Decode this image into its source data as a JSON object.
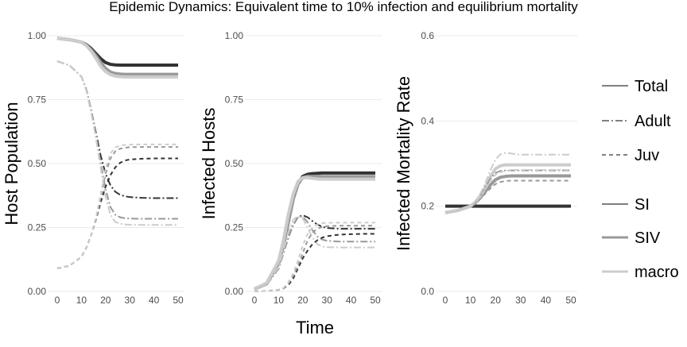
{
  "chart_data": {
    "title": "Epidemic Dynamics: Equivalent time to 10% infection and equilibrium mortality",
    "xlabel": "Time",
    "x_ticks": [
      0,
      10,
      20,
      30,
      40,
      50
    ],
    "grid": "horizontal major",
    "legend_position": "right",
    "legend": {
      "stage": [
        {
          "label": "Total",
          "dash": "solid"
        },
        {
          "label": "Adult",
          "dash": "dashdot"
        },
        {
          "label": "Juv",
          "dash": "dashed"
        }
      ],
      "model": [
        {
          "label": "SI",
          "color": "#333333"
        },
        {
          "label": "SIV",
          "color": "#999999"
        },
        {
          "label": "macro",
          "color": "#cccccc"
        }
      ]
    },
    "panels": [
      {
        "type": "line",
        "ylabel": "Host Population",
        "ylim": [
          0,
          1.0
        ],
        "y_ticks": [
          0.0,
          0.25,
          0.5,
          0.75,
          1.0
        ],
        "y_tick_labels": [
          "0.00",
          "0.25",
          "0.50",
          "0.75",
          "1.00"
        ],
        "x": [
          0,
          5,
          10,
          12,
          14,
          16,
          18,
          20,
          22,
          24,
          26,
          28,
          30,
          35,
          40,
          45,
          50
        ],
        "series": [
          {
            "model": "SI",
            "stage": "Total",
            "values": [
              0.99,
              0.985,
              0.975,
              0.965,
              0.95,
              0.93,
              0.91,
              0.895,
              0.888,
              0.886,
              0.885,
              0.885,
              0.885,
              0.885,
              0.885,
              0.885,
              0.885
            ]
          },
          {
            "model": "SIV",
            "stage": "Total",
            "values": [
              0.99,
              0.985,
              0.975,
              0.962,
              0.945,
              0.922,
              0.895,
              0.872,
              0.858,
              0.852,
              0.85,
              0.849,
              0.849,
              0.849,
              0.849,
              0.849,
              0.849
            ]
          },
          {
            "model": "macro",
            "stage": "Total",
            "values": [
              0.99,
              0.985,
              0.975,
              0.962,
              0.94,
              0.912,
              0.88,
              0.86,
              0.848,
              0.842,
              0.84,
              0.839,
              0.839,
              0.839,
              0.839,
              0.839,
              0.839
            ]
          },
          {
            "model": "SI",
            "stage": "Adult",
            "values": [
              0.9,
              0.885,
              0.84,
              0.79,
              0.71,
              0.62,
              0.53,
              0.46,
              0.415,
              0.39,
              0.378,
              0.372,
              0.369,
              0.366,
              0.365,
              0.365,
              0.365
            ]
          },
          {
            "model": "SIV",
            "stage": "Adult",
            "values": [
              0.9,
              0.885,
              0.84,
              0.79,
              0.71,
              0.61,
              0.5,
              0.4,
              0.33,
              0.3,
              0.29,
              0.286,
              0.285,
              0.284,
              0.284,
              0.284,
              0.284
            ]
          },
          {
            "model": "macro",
            "stage": "Adult",
            "values": [
              0.9,
              0.885,
              0.84,
              0.785,
              0.7,
              0.6,
              0.48,
              0.37,
              0.3,
              0.272,
              0.265,
              0.262,
              0.261,
              0.26,
              0.26,
              0.26,
              0.26
            ]
          },
          {
            "model": "SI",
            "stage": "Juv",
            "values": [
              0.09,
              0.1,
              0.135,
              0.17,
              0.22,
              0.28,
              0.35,
              0.41,
              0.455,
              0.485,
              0.503,
              0.512,
              0.516,
              0.519,
              0.52,
              0.52,
              0.52
            ]
          },
          {
            "model": "SIV",
            "stage": "Juv",
            "values": [
              0.09,
              0.1,
              0.135,
              0.17,
              0.22,
              0.28,
              0.37,
              0.46,
              0.52,
              0.548,
              0.558,
              0.562,
              0.564,
              0.565,
              0.565,
              0.565,
              0.565
            ]
          },
          {
            "model": "macro",
            "stage": "Juv",
            "values": [
              0.09,
              0.1,
              0.135,
              0.17,
              0.22,
              0.29,
              0.38,
              0.48,
              0.54,
              0.563,
              0.57,
              0.573,
              0.574,
              0.575,
              0.575,
              0.575,
              0.575
            ]
          }
        ]
      },
      {
        "type": "line",
        "ylabel": "Infected Hosts",
        "ylim": [
          0,
          1.0
        ],
        "y_ticks": [
          0.0,
          0.25,
          0.5,
          0.75,
          1.0
        ],
        "y_tick_labels": [
          "0.00",
          "0.25",
          "0.50",
          "0.75",
          "1.00"
        ],
        "x": [
          0,
          5,
          10,
          12,
          14,
          16,
          18,
          20,
          22,
          24,
          26,
          28,
          30,
          35,
          40,
          45,
          50
        ],
        "series": [
          {
            "model": "SI",
            "stage": "Total",
            "values": [
              0.01,
              0.03,
              0.11,
              0.18,
              0.27,
              0.36,
              0.42,
              0.45,
              0.458,
              0.461,
              0.462,
              0.463,
              0.463,
              0.463,
              0.463,
              0.463,
              0.463
            ]
          },
          {
            "model": "SIV",
            "stage": "Total",
            "values": [
              0.01,
              0.03,
              0.11,
              0.18,
              0.27,
              0.36,
              0.42,
              0.445,
              0.45,
              0.45,
              0.45,
              0.449,
              0.449,
              0.449,
              0.449,
              0.449,
              0.449
            ]
          },
          {
            "model": "macro",
            "stage": "Total",
            "values": [
              0.01,
              0.032,
              0.12,
              0.2,
              0.3,
              0.38,
              0.43,
              0.445,
              0.445,
              0.442,
              0.44,
              0.439,
              0.439,
              0.439,
              0.439,
              0.439,
              0.439
            ]
          },
          {
            "model": "SI",
            "stage": "Adult",
            "values": [
              0.008,
              0.025,
              0.09,
              0.15,
              0.21,
              0.26,
              0.29,
              0.298,
              0.29,
              0.275,
              0.262,
              0.253,
              0.248,
              0.245,
              0.245,
              0.245,
              0.245
            ]
          },
          {
            "model": "SIV",
            "stage": "Adult",
            "values": [
              0.008,
              0.025,
              0.09,
              0.15,
              0.21,
              0.26,
              0.29,
              0.293,
              0.27,
              0.24,
              0.215,
              0.203,
              0.198,
              0.195,
              0.195,
              0.195,
              0.195
            ]
          },
          {
            "model": "macro",
            "stage": "Adult",
            "values": [
              0.008,
              0.026,
              0.095,
              0.16,
              0.23,
              0.28,
              0.295,
              0.285,
              0.25,
              0.21,
              0.185,
              0.176,
              0.173,
              0.172,
              0.172,
              0.172,
              0.172
            ]
          },
          {
            "model": "SI",
            "stage": "Juv",
            "values": [
              0.0,
              0.002,
              0.006,
              0.012,
              0.025,
              0.05,
              0.09,
              0.13,
              0.16,
              0.185,
              0.2,
              0.21,
              0.216,
              0.222,
              0.224,
              0.225,
              0.225
            ]
          },
          {
            "model": "SIV",
            "stage": "Juv",
            "values": [
              0.0,
              0.002,
              0.006,
              0.012,
              0.03,
              0.06,
              0.1,
              0.15,
              0.2,
              0.23,
              0.245,
              0.252,
              0.255,
              0.257,
              0.257,
              0.257,
              0.257
            ]
          },
          {
            "model": "macro",
            "stage": "Juv",
            "values": [
              0.0,
              0.002,
              0.007,
              0.014,
              0.035,
              0.07,
              0.12,
              0.18,
              0.225,
              0.25,
              0.262,
              0.267,
              0.268,
              0.269,
              0.269,
              0.269,
              0.269
            ]
          }
        ]
      },
      {
        "type": "line",
        "ylabel": "Infected Mortality Rate",
        "ylim": [
          0,
          0.6
        ],
        "y_ticks": [
          0.0,
          0.2,
          0.4,
          0.6
        ],
        "y_tick_labels": [
          "0.0",
          "0.2",
          "0.4",
          "0.6"
        ],
        "x": [
          0,
          5,
          10,
          12,
          14,
          16,
          18,
          20,
          22,
          24,
          26,
          28,
          30,
          35,
          40,
          45,
          50
        ],
        "series": [
          {
            "model": "SI",
            "stage": "Total",
            "values": [
              0.2,
              0.2,
              0.2,
              0.2,
              0.2,
              0.2,
              0.2,
              0.2,
              0.2,
              0.2,
              0.2,
              0.2,
              0.2,
              0.2,
              0.2,
              0.2,
              0.2
            ]
          },
          {
            "model": "SIV",
            "stage": "Total",
            "values": [
              0.185,
              0.19,
              0.2,
              0.208,
              0.22,
              0.235,
              0.25,
              0.262,
              0.268,
              0.27,
              0.271,
              0.271,
              0.271,
              0.271,
              0.271,
              0.271,
              0.271
            ]
          },
          {
            "model": "macro",
            "stage": "Total",
            "values": [
              0.185,
              0.19,
              0.2,
              0.21,
              0.225,
              0.245,
              0.27,
              0.288,
              0.295,
              0.297,
              0.297,
              0.297,
              0.297,
              0.297,
              0.297,
              0.297,
              0.297
            ]
          },
          {
            "model": "SIV",
            "stage": "Adult",
            "values": [
              0.185,
              0.19,
              0.2,
              0.21,
              0.225,
              0.245,
              0.265,
              0.278,
              0.283,
              0.284,
              0.284,
              0.284,
              0.284,
              0.284,
              0.284,
              0.284,
              0.284
            ]
          },
          {
            "model": "macro",
            "stage": "Adult",
            "values": [
              0.185,
              0.19,
              0.2,
              0.212,
              0.23,
              0.255,
              0.285,
              0.31,
              0.322,
              0.325,
              0.324,
              0.322,
              0.321,
              0.321,
              0.321,
              0.321,
              0.321
            ]
          },
          {
            "model": "SIV",
            "stage": "Juv",
            "values": [
              0.185,
              0.19,
              0.2,
              0.207,
              0.218,
              0.23,
              0.242,
              0.252,
              0.257,
              0.259,
              0.26,
              0.26,
              0.26,
              0.26,
              0.26,
              0.26,
              0.26
            ]
          },
          {
            "model": "macro",
            "stage": "Juv",
            "values": [
              0.185,
              0.19,
              0.2,
              0.21,
              0.222,
              0.24,
              0.26,
              0.274,
              0.28,
              0.283,
              0.284,
              0.285,
              0.285,
              0.285,
              0.285,
              0.285,
              0.285
            ]
          }
        ]
      }
    ]
  }
}
